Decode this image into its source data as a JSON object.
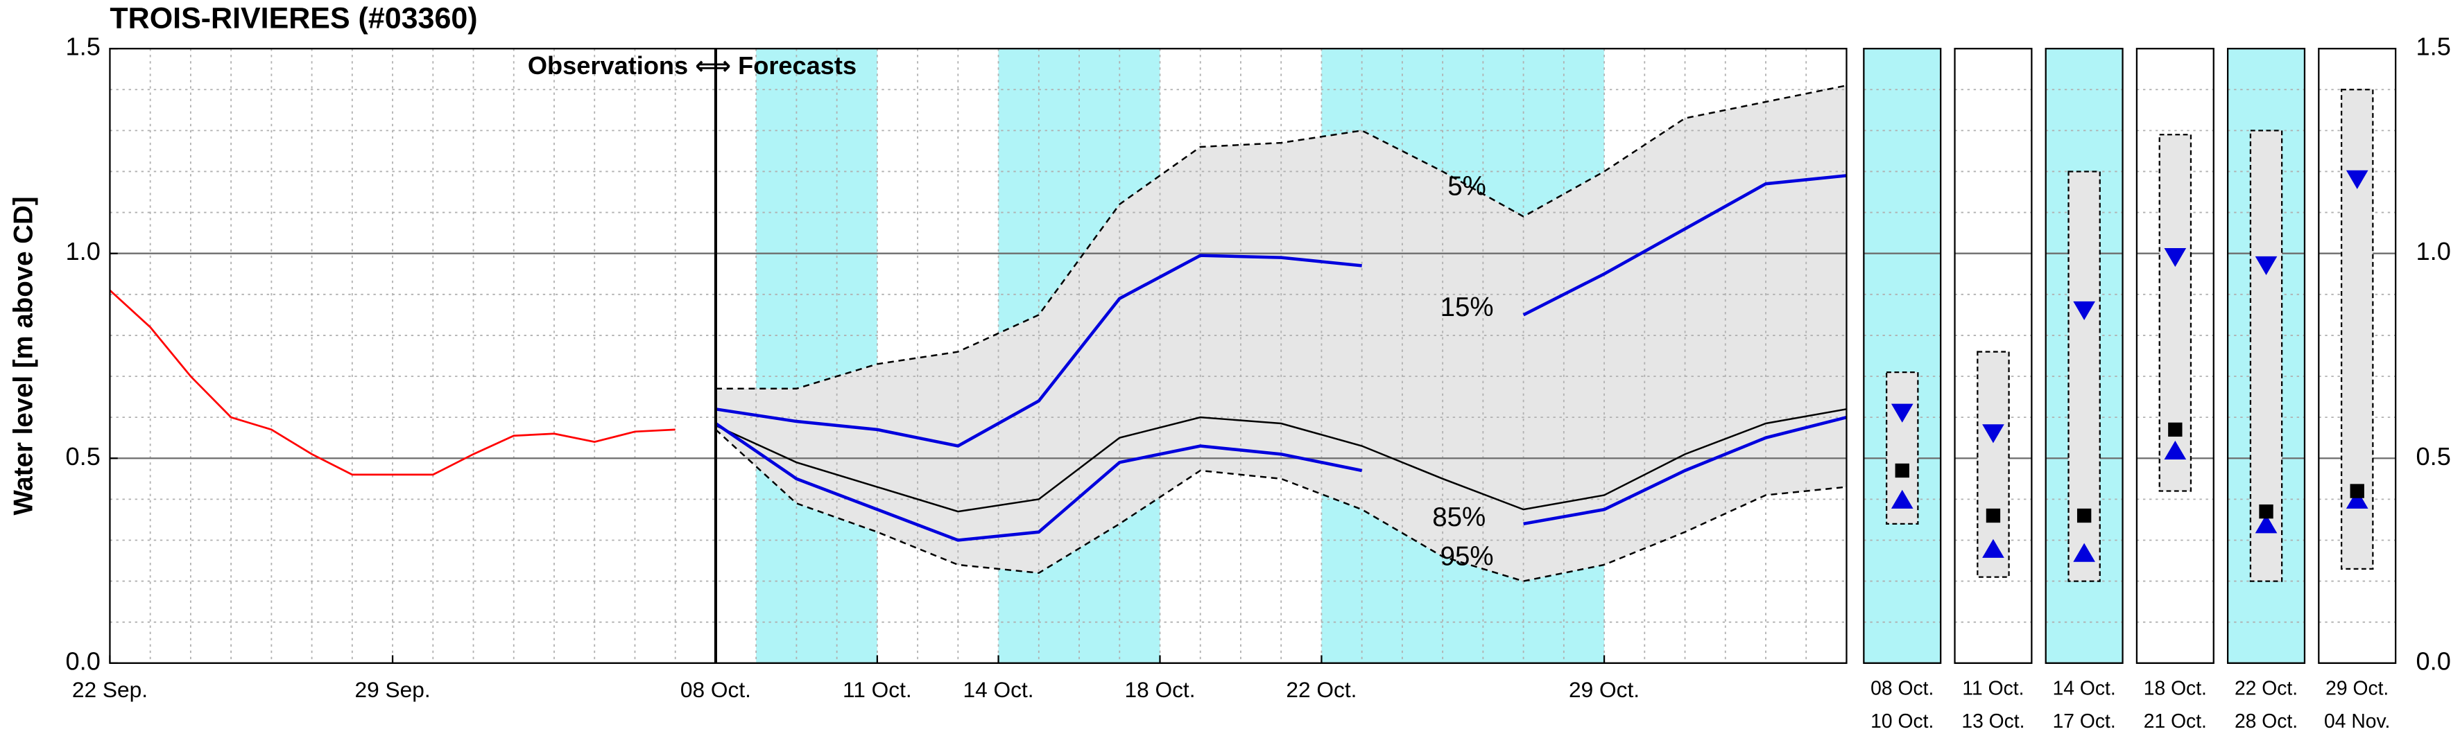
{
  "title": "TROIS-RIVIERES (#03360)",
  "chart_data": {
    "type": "line",
    "y_label": "Water level [m above CD]",
    "annotation": "Observations ⟺ Forecasts",
    "ylim": [
      0,
      1.5
    ],
    "yticks": [
      {
        "value": 0,
        "label": "0.0"
      },
      0.5,
      {
        "value": 1,
        "label": "1.0"
      },
      1.5
    ],
    "minor_yticks": [
      0.1,
      0.2,
      0.3,
      0.4,
      0.6,
      0.7,
      0.8,
      0.9,
      1.1,
      1.2,
      1.3,
      1.4
    ],
    "xlim": [
      0,
      43
    ],
    "xticks": [
      {
        "value": 0,
        "label": "22 Sep."
      },
      {
        "value": 7,
        "label": "29 Sep."
      },
      {
        "value": 15,
        "label": "08 Oct."
      },
      {
        "value": 19,
        "label": "11 Oct."
      },
      {
        "value": 22,
        "label": "14 Oct."
      },
      {
        "value": 26,
        "label": "18 Oct."
      },
      {
        "value": 30,
        "label": "22 Oct."
      },
      {
        "value": 37,
        "label": "29 Oct."
      }
    ],
    "minor_xticks": [
      1,
      2,
      3,
      4,
      5,
      6,
      8,
      9,
      10,
      11,
      12,
      13,
      14,
      16,
      17,
      18,
      20,
      21,
      23,
      24,
      25,
      27,
      28,
      29,
      31,
      32,
      33,
      34,
      35,
      36,
      38,
      39,
      40,
      41,
      42
    ],
    "grid": true,
    "divider_x": 15,
    "shaded_x": [
      [
        16,
        19
      ],
      [
        22,
        26
      ],
      [
        30,
        37
      ]
    ],
    "shade_color": "#b0f4f7",
    "observations": {
      "color": "#ff0000",
      "x": [
        0,
        1,
        2,
        3,
        4,
        5,
        6,
        7,
        8,
        9,
        10,
        11,
        12,
        13,
        14
      ],
      "values": [
        0.91,
        0.82,
        0.7,
        0.6,
        0.57,
        0.51,
        0.46,
        0.46,
        0.46,
        0.51,
        0.555,
        0.56,
        0.54,
        0.565,
        0.57
      ]
    },
    "x": [
      15,
      17,
      19,
      21,
      23,
      25,
      27,
      29,
      31,
      33,
      35,
      37,
      39,
      41,
      43
    ],
    "series": [
      {
        "name": "5%",
        "color": "#000000",
        "style": "dashed",
        "values": [
          0.67,
          0.67,
          0.73,
          0.76,
          0.85,
          1.12,
          1.26,
          1.27,
          1.3,
          1.2,
          1.09,
          1.2,
          1.33,
          1.37,
          1.41
        ]
      },
      {
        "name": "15%",
        "color": "#0000dd",
        "style": "solid",
        "values": [
          0.62,
          0.59,
          0.57,
          0.53,
          0.64,
          0.89,
          0.995,
          0.99,
          0.97,
          null,
          0.85,
          0.95,
          1.06,
          1.17,
          1.19
        ]
      },
      {
        "color": "#000000",
        "style": "solid",
        "values": [
          0.58,
          0.49,
          0.43,
          0.37,
          0.4,
          0.55,
          0.6,
          0.585,
          0.53,
          0.45,
          0.375,
          0.41,
          0.51,
          0.585,
          0.62
        ]
      },
      {
        "name": "85%",
        "color": "#0000dd",
        "style": "solid",
        "values": [
          0.585,
          0.45,
          0.375,
          0.3,
          0.32,
          0.49,
          0.53,
          0.51,
          0.47,
          null,
          0.34,
          0.375,
          0.47,
          0.55,
          0.6
        ]
      },
      {
        "name": "95%",
        "color": "#000000",
        "style": "dashed",
        "values": [
          0.57,
          0.39,
          0.32,
          0.24,
          0.22,
          0.34,
          0.47,
          0.45,
          0.375,
          0.26,
          0.2,
          0.24,
          0.32,
          0.41,
          0.43
        ]
      }
    ],
    "fill_between": [
      0,
      4
    ],
    "fill_color": "#e6e6e6",
    "panel_marker_color": "#0000dd",
    "panels": [
      {
        "from": "08 Oct.",
        "to": "10 Oct.",
        "highlight": true,
        "low": 0.34,
        "high": 0.71,
        "down": 0.61,
        "square": 0.47,
        "up": 0.4
      },
      {
        "from": "11 Oct.",
        "to": "13 Oct.",
        "highlight": false,
        "low": 0.21,
        "high": 0.76,
        "down": 0.56,
        "square": 0.36,
        "up": 0.28
      },
      {
        "from": "14 Oct.",
        "to": "17 Oct.",
        "highlight": true,
        "low": 0.2,
        "high": 1.2,
        "down": 0.86,
        "square": 0.36,
        "up": 0.27
      },
      {
        "from": "18 Oct.",
        "to": "21 Oct.",
        "highlight": false,
        "low": 0.42,
        "high": 1.29,
        "down": 0.99,
        "square": 0.57,
        "up": 0.52
      },
      {
        "from": "22 Oct.",
        "to": "28 Oct.",
        "highlight": true,
        "low": 0.2,
        "high": 1.3,
        "down": 0.97,
        "square": 0.37,
        "up": 0.34
      },
      {
        "from": "29 Oct.",
        "to": "04 Nov.",
        "highlight": false,
        "low": 0.23,
        "high": 1.4,
        "down": 1.18,
        "square": 0.42,
        "up": 0.4
      }
    ]
  }
}
